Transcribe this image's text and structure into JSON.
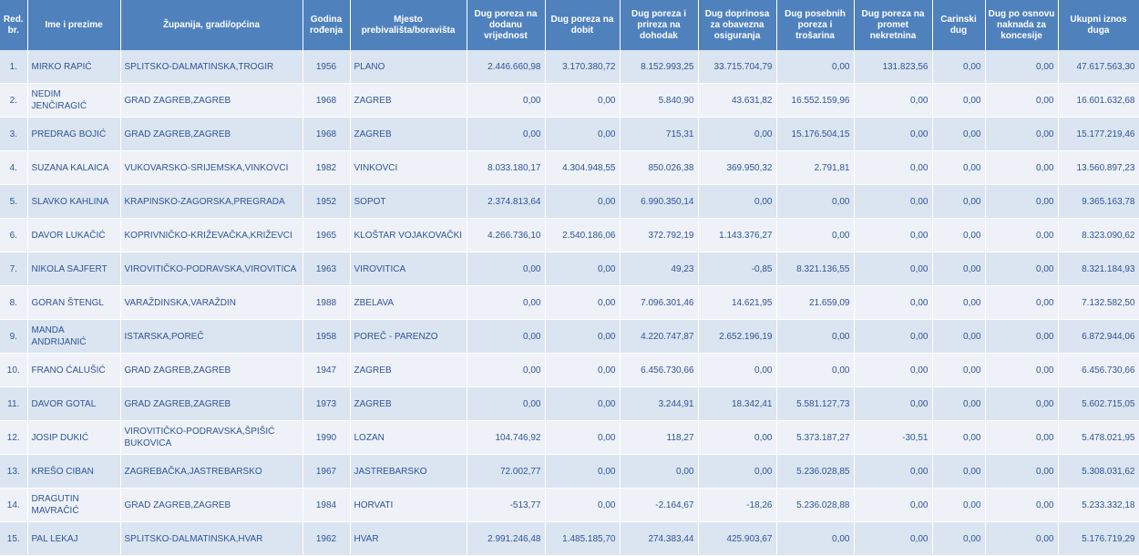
{
  "headers": [
    "Red. br.",
    "Ime i prezime",
    "Županija, gradi/općina",
    "Godina rođenja",
    "Mjesto prebivališta/boravišta",
    "Dug poreza na dodanu vrijednost",
    "Dug poreza na dobit",
    "Dug poreza i prireza na dohodak",
    "Dug doprinosa za obavezna osiguranja",
    "Dug posebnih poreza i trošarina",
    "Dug poreza na promet nekretnina",
    "Carinski dug",
    "Dug po osnovu naknada za koncesije",
    "Ukupni iznos duga"
  ],
  "rows": [
    [
      "1.",
      "MIRKO RAPIĆ",
      "SPLITSKO-DALMATINSKA,TROGIR",
      "1956",
      "PLANO",
      "2.446.660,98",
      "3.170.380,72",
      "8.152.993,25",
      "33.715.704,79",
      "0,00",
      "131.823,56",
      "0,00",
      "0,00",
      "47.617.563,30"
    ],
    [
      "2.",
      "NEDIM JENČIRAGIĆ",
      "GRAD ZAGREB,ZAGREB",
      "1968",
      "ZAGREB",
      "0,00",
      "0,00",
      "5.840,90",
      "43.631,82",
      "16.552.159,96",
      "0,00",
      "0,00",
      "0,00",
      "16.601.632,68"
    ],
    [
      "3.",
      "PREDRAG BOJIĆ",
      "GRAD ZAGREB,ZAGREB",
      "1968",
      "ZAGREB",
      "0,00",
      "0,00",
      "715,31",
      "0,00",
      "15.176.504,15",
      "0,00",
      "0,00",
      "0,00",
      "15.177.219,46"
    ],
    [
      "4.",
      "SUZANA KALAICA",
      "VUKOVARSKO-SRIJEMSKA,VINKOVCI",
      "1982",
      "VINKOVCI",
      "8.033.180,17",
      "4.304.948,55",
      "850.026,38",
      "369.950,32",
      "2.791,81",
      "0,00",
      "0,00",
      "0,00",
      "13.560.897,23"
    ],
    [
      "5.",
      "SLAVKO KAHLINA",
      "KRAPINSKO-ZAGORSKA,PREGRADA",
      "1952",
      "SOPOT",
      "2.374.813,64",
      "0,00",
      "6.990.350,14",
      "0,00",
      "0,00",
      "0,00",
      "0,00",
      "0,00",
      "9.365.163,78"
    ],
    [
      "6.",
      "DAVOR LUKAČIĆ",
      "KOPRIVNIČKO-KRIŽEVAČKA,KRIŽEVCI",
      "1965",
      "KLOŠTAR VOJAKOVAČKI",
      "4.266.736,10",
      "2.540.186,06",
      "372.792,19",
      "1.143.376,27",
      "0,00",
      "0,00",
      "0,00",
      "0,00",
      "8.323.090,62"
    ],
    [
      "7.",
      "NIKOLA SAJFERT",
      "VIROVITIČKO-PODRAVSKA,VIROVITICA",
      "1963",
      "VIROVITICA",
      "0,00",
      "0,00",
      "49,23",
      "-0,85",
      "8.321.136,55",
      "0,00",
      "0,00",
      "0,00",
      "8.321.184,93"
    ],
    [
      "8.",
      "GORAN ŠTENGL",
      "VARAŽDINSKA,VARAŽDIN",
      "1988",
      "ZBELAVA",
      "0,00",
      "0,00",
      "7.096.301,46",
      "14.621,95",
      "21.659,09",
      "0,00",
      "0,00",
      "0,00",
      "7.132.582,50"
    ],
    [
      "9.",
      "MANDA ANDRIJANIĆ",
      "ISTARSKA,POREČ",
      "1958",
      "POREČ - PARENZO",
      "0,00",
      "0,00",
      "4.220.747,87",
      "2.652.196,19",
      "0,00",
      "0,00",
      "0,00",
      "0,00",
      "6.872.944,06"
    ],
    [
      "10.",
      "FRANO ĆALUŠIĆ",
      "GRAD ZAGREB,ZAGREB",
      "1947",
      "ZAGREB",
      "0,00",
      "0,00",
      "6.456.730,66",
      "0,00",
      "0,00",
      "0,00",
      "0,00",
      "0,00",
      "6.456.730,66"
    ],
    [
      "11.",
      "DAVOR GOTAL",
      "GRAD ZAGREB,ZAGREB",
      "1973",
      "ZAGREB",
      "0,00",
      "0,00",
      "3.244,91",
      "18.342,41",
      "5.581.127,73",
      "0,00",
      "0,00",
      "0,00",
      "5.602.715,05"
    ],
    [
      "12.",
      "JOSIP DUKIĆ",
      "VIROVITIČKO-PODRAVSKA,ŠPIŠIĆ BUKOVICA",
      "1990",
      "LOZAN",
      "104.746,92",
      "0,00",
      "118,27",
      "0,00",
      "5.373.187,27",
      "-30,51",
      "0,00",
      "0,00",
      "5.478.021,95"
    ],
    [
      "13.",
      "KREŠO CIBAN",
      "ZAGREBAČKA,JASTREBARSKO",
      "1967",
      "JASTREBARSKO",
      "72.002,77",
      "0,00",
      "0,00",
      "0,00",
      "5.236.028,85",
      "0,00",
      "0,00",
      "0,00",
      "5.308.031,62"
    ],
    [
      "14.",
      "DRAGUTIN MAVRAČIĆ",
      "GRAD ZAGREB,ZAGREB",
      "1984",
      "HORVATI",
      "-513,77",
      "0,00",
      "-2.164,67",
      "-18,26",
      "5.236.028,88",
      "0,00",
      "0,00",
      "0,00",
      "5.233.332,18"
    ],
    [
      "15.",
      "PAL LEKAJ",
      "SPLITSKO-DALMATINSKA,HVAR",
      "1962",
      "HVAR",
      "2.991.246,48",
      "1.485.185,70",
      "274.383,44",
      "425.903,67",
      "0,00",
      "0,00",
      "0,00",
      "0,00",
      "5.176.719,29"
    ]
  ]
}
